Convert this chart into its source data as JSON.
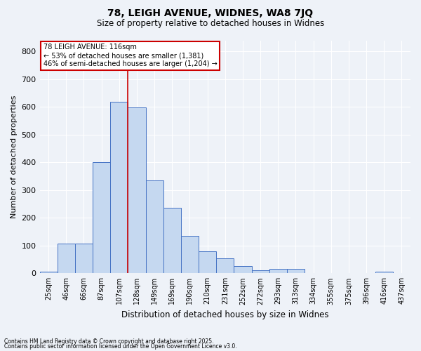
{
  "title1": "78, LEIGH AVENUE, WIDNES, WA8 7JQ",
  "title2": "Size of property relative to detached houses in Widnes",
  "xlabel": "Distribution of detached houses by size in Widnes",
  "ylabel": "Number of detached properties",
  "categories": [
    "25sqm",
    "46sqm",
    "66sqm",
    "87sqm",
    "107sqm",
    "128sqm",
    "149sqm",
    "169sqm",
    "190sqm",
    "210sqm",
    "231sqm",
    "252sqm",
    "272sqm",
    "293sqm",
    "313sqm",
    "334sqm",
    "355sqm",
    "375sqm",
    "396sqm",
    "416sqm",
    "437sqm"
  ],
  "values": [
    7,
    108,
    108,
    400,
    618,
    598,
    334,
    236,
    136,
    78,
    53,
    25,
    12,
    16,
    16,
    0,
    0,
    0,
    0,
    7,
    0
  ],
  "bar_color": "#c5d8f0",
  "bar_edge_color": "#4472c4",
  "bg_color": "#eef2f8",
  "grid_color": "#ffffff",
  "annotation_text_line1": "78 LEIGH AVENUE: 116sqm",
  "annotation_text_line2": "← 53% of detached houses are smaller (1,381)",
  "annotation_text_line3": "46% of semi-detached houses are larger (1,204) →",
  "annotation_box_color": "#cc0000",
  "vline_x_idx": 4.5,
  "ylim": [
    0,
    840
  ],
  "yticks": [
    0,
    100,
    200,
    300,
    400,
    500,
    600,
    700,
    800
  ],
  "footnote1": "Contains HM Land Registry data © Crown copyright and database right 2025.",
  "footnote2": "Contains public sector information licensed under the Open Government Licence v3.0."
}
